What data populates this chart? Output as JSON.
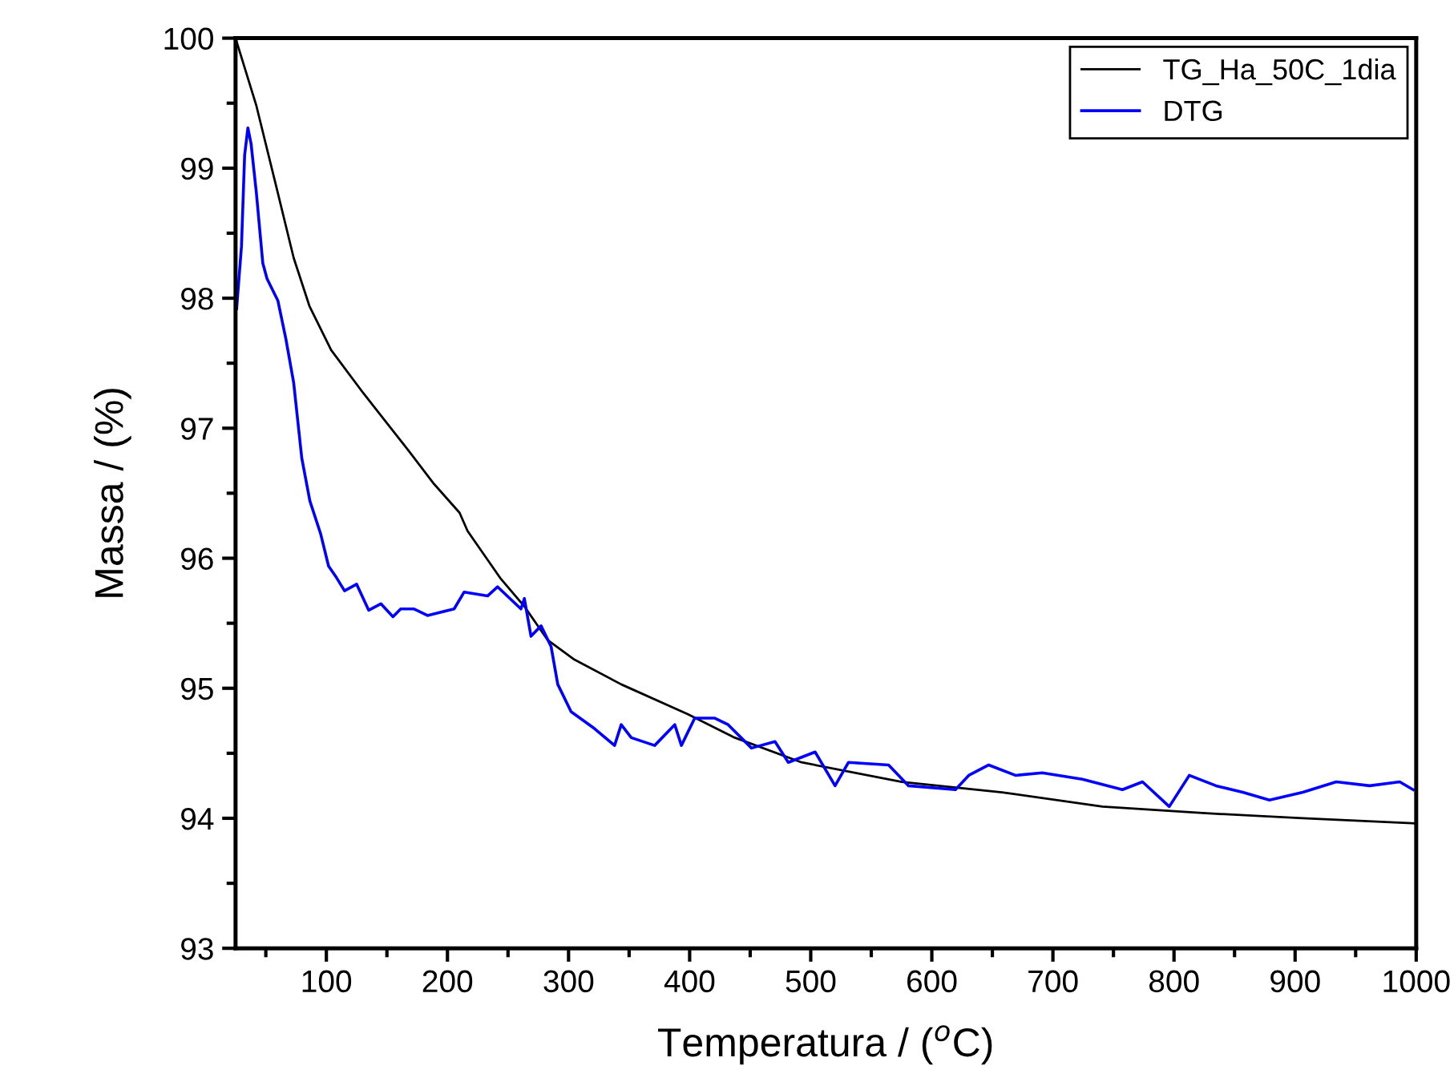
{
  "chart_data": {
    "type": "line",
    "xlabel": "Temperatura / ($^{o}$C)",
    "ylabel": "Massa / (%)",
    "xlim": [
      25,
      1000
    ],
    "xticks": [
      100,
      200,
      300,
      400,
      500,
      600,
      700,
      800,
      900,
      1000
    ],
    "ylim": [
      93,
      100
    ],
    "yticks": [
      93,
      94,
      95,
      96,
      97,
      98,
      99,
      100
    ],
    "grid": false,
    "legend": "top right",
    "series": [
      {
        "name": "TG_Ha_50C_1dia",
        "color": "#000000",
        "x": [
          25,
          42.2,
          59.9,
          73,
          86,
          104,
          130.5,
          166,
          189,
          210,
          216.6,
          244.2,
          263.5,
          282.8,
          304.9,
          343.5,
          398.7,
          437.3,
          492.5,
          575.3,
          658,
          740.9,
          823.6,
          906.4,
          1000
        ],
        "values": [
          100,
          99.48,
          98.81,
          98.31,
          97.94,
          97.6,
          97.27,
          96.85,
          96.57,
          96.35,
          96.21,
          95.84,
          95.63,
          95.37,
          95.22,
          95.03,
          94.8,
          94.62,
          94.43,
          94.28,
          94.2,
          94.09,
          94.04,
          94.0,
          93.96
        ]
      },
      {
        "name": "DTG",
        "color": "#0000ff",
        "x": [
          25.9,
          29.9,
          32.5,
          35.2,
          37.8,
          42.2,
          47.5,
          51,
          60,
          66.5,
          73,
          79.7,
          86.4,
          95.2,
          101.8,
          108.4,
          115,
          125,
          135,
          145,
          155,
          161.4,
          172.4,
          183.5,
          205.5,
          213.8,
          233.1,
          241.4,
          260.7,
          263.5,
          269,
          277.3,
          285.6,
          291.1,
          302.1,
          321.4,
          338,
          343.5,
          351.8,
          371.1,
          387.7,
          393.2,
          404.2,
          420.8,
          431.8,
          451.1,
          470.5,
          481.5,
          503.6,
          520.1,
          531.2,
          564.3,
          580.8,
          619.5,
          630.5,
          647,
          669.1,
          691.2,
          724.3,
          757.4,
          774,
          796.1,
          812.6,
          834.7,
          856.8,
          878.8,
          906.4,
          934,
          961.6,
          986.4,
          997.5
        ],
        "values": [
          97.92,
          98.4,
          99.1,
          99.31,
          99.19,
          98.81,
          98.27,
          98.15,
          97.98,
          97.69,
          97.35,
          96.77,
          96.44,
          96.19,
          95.94,
          95.85,
          95.75,
          95.8,
          95.6,
          95.65,
          95.55,
          95.61,
          95.61,
          95.56,
          95.61,
          95.74,
          95.71,
          95.78,
          95.61,
          95.69,
          95.4,
          95.48,
          95.32,
          95.03,
          94.82,
          94.69,
          94.56,
          94.72,
          94.62,
          94.56,
          94.72,
          94.56,
          94.77,
          94.77,
          94.72,
          94.54,
          94.59,
          94.43,
          94.51,
          94.25,
          94.43,
          94.41,
          94.25,
          94.22,
          94.33,
          94.41,
          94.33,
          94.35,
          94.3,
          94.22,
          94.28,
          94.09,
          94.33,
          94.25,
          94.2,
          94.14,
          94.2,
          94.28,
          94.25,
          94.28,
          94.22
        ]
      }
    ]
  }
}
